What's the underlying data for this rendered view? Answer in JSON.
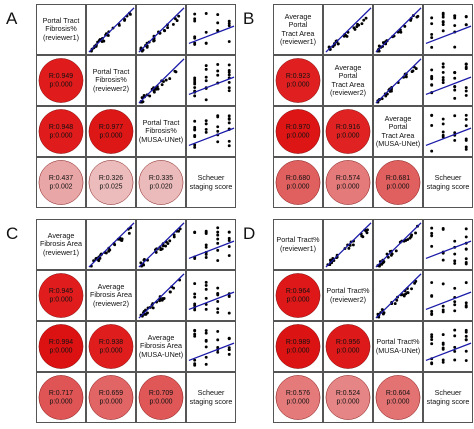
{
  "panels": [
    {
      "letter": "A",
      "labels": [
        "Portal Tract\nFibrosis%\n(reviewer1)",
        "Portal Tract\nFibrosis%\n(reviewer2)",
        "Portal Tract\nFibrosis%\n(MUSA-UNet)",
        "Scheuer\nstaging score"
      ],
      "correlations": [
        {
          "row": 2,
          "col": 1,
          "r": "R:0.949",
          "p": "p:0.000",
          "color": "#e01b1b"
        },
        {
          "row": 3,
          "col": 1,
          "r": "R:0.948",
          "p": "p:0.000",
          "color": "#e01b1b"
        },
        {
          "row": 3,
          "col": 2,
          "r": "R:0.977",
          "p": "p:0.000",
          "color": "#dd1616"
        },
        {
          "row": 4,
          "col": 1,
          "r": "R:0.437",
          "p": "p:0.002",
          "color": "#e8a6a6"
        },
        {
          "row": 4,
          "col": 2,
          "r": "R:0.326",
          "p": "p:0.025",
          "color": "#ecbcbc"
        },
        {
          "row": 4,
          "col": 3,
          "r": "R:0.335",
          "p": "p:0.020",
          "color": "#ebbaba"
        }
      ]
    },
    {
      "letter": "B",
      "labels": [
        "Average Portal\nTract Area\n(reviewer1)",
        "Average Portal\nTract Area\n(reviewer2)",
        "Average Portal\nTract Area\n(MUSA-UNet)",
        "Scheuer\nstaging score"
      ],
      "correlations": [
        {
          "row": 2,
          "col": 1,
          "r": "R:0.923",
          "p": "p:0.000",
          "color": "#e02020"
        },
        {
          "row": 3,
          "col": 1,
          "r": "R:0.970",
          "p": "p:0.000",
          "color": "#dd1515"
        },
        {
          "row": 3,
          "col": 2,
          "r": "R:0.916",
          "p": "p:0.000",
          "color": "#e02222"
        },
        {
          "row": 4,
          "col": 1,
          "r": "R:0.680",
          "p": "p:0.000",
          "color": "#e06060"
        },
        {
          "row": 4,
          "col": 2,
          "r": "R:0.574",
          "p": "p:0.000",
          "color": "#e47a7a"
        },
        {
          "row": 4,
          "col": 3,
          "r": "R:0.681",
          "p": "p:0.000",
          "color": "#e05f5f"
        }
      ]
    },
    {
      "letter": "C",
      "labels": [
        "Average\nFibrosis Area\n(reviewer1)",
        "Average\nFibrosis Area\n(reviewer2)",
        "Average\nFibrosis Area\n(MUSA-UNet)",
        "Scheuer\nstaging score"
      ],
      "correlations": [
        {
          "row": 2,
          "col": 1,
          "r": "R:0.945",
          "p": "p:0.000",
          "color": "#e01c1c"
        },
        {
          "row": 3,
          "col": 1,
          "r": "R:0.994",
          "p": "p:0.000",
          "color": "#dc1212"
        },
        {
          "row": 3,
          "col": 2,
          "r": "R:0.938",
          "p": "p:0.000",
          "color": "#e01d1d"
        },
        {
          "row": 4,
          "col": 1,
          "r": "R:0.717",
          "p": "p:0.000",
          "color": "#df5555"
        },
        {
          "row": 4,
          "col": 2,
          "r": "R:0.659",
          "p": "p:0.000",
          "color": "#e16565"
        },
        {
          "row": 4,
          "col": 3,
          "r": "R:0.709",
          "p": "p:0.000",
          "color": "#df5757"
        }
      ]
    },
    {
      "letter": "D",
      "labels": [
        "Portal Tract%\n(reviewer1)",
        "Portal Tract%\n(reviewer2)",
        "Portal Tract%\n(MUSA-UNet)",
        "Scheuer\nstaging score"
      ],
      "correlations": [
        {
          "row": 2,
          "col": 1,
          "r": "R:0.964",
          "p": "p:0.000",
          "color": "#de1818"
        },
        {
          "row": 3,
          "col": 1,
          "r": "R:0.989",
          "p": "p:0.000",
          "color": "#dc1313"
        },
        {
          "row": 3,
          "col": 2,
          "r": "R:0.956",
          "p": "p:0.000",
          "color": "#de1919"
        },
        {
          "row": 4,
          "col": 1,
          "r": "R:0.576",
          "p": "p:0.000",
          "color": "#e47a7a"
        },
        {
          "row": 4,
          "col": 2,
          "r": "R:0.524",
          "p": "p:0.000",
          "color": "#e68585"
        },
        {
          "row": 4,
          "col": 3,
          "r": "R:0.604",
          "p": "p:0.000",
          "color": "#e37272"
        }
      ]
    }
  ],
  "chart_data": [
    {
      "type": "scatter",
      "panel": "A",
      "variables": [
        "Portal Tract Fibrosis% (reviewer1)",
        "Portal Tract Fibrosis% (reviewer2)",
        "Portal Tract Fibrosis% (MUSA-UNet)",
        "Scheuer staging score"
      ],
      "correlation_matrix": {
        "R": [
          [
            1,
            0.949,
            0.948,
            0.437
          ],
          [
            0.949,
            1,
            0.977,
            0.326
          ],
          [
            0.948,
            0.977,
            1,
            0.335
          ],
          [
            0.437,
            0.326,
            0.335,
            1
          ]
        ],
        "p": [
          [
            0,
            0.0,
            0.0,
            0.002
          ],
          [
            0.0,
            0,
            0.0,
            0.025
          ],
          [
            0.0,
            0.0,
            0,
            0.02
          ],
          [
            0.002,
            0.025,
            0.02,
            0
          ]
        ]
      },
      "fit_line_color": "#1a1aa8",
      "point_color": "#000000",
      "circle_color_scale": "red intensity proportional to R"
    },
    {
      "type": "scatter",
      "panel": "B",
      "variables": [
        "Average Portal Tract Area (reviewer1)",
        "Average Portal Tract Area (reviewer2)",
        "Average Portal Tract Area (MUSA-UNet)",
        "Scheuer staging score"
      ],
      "correlation_matrix": {
        "R": [
          [
            1,
            0.923,
            0.97,
            0.68
          ],
          [
            0.923,
            1,
            0.916,
            0.574
          ],
          [
            0.97,
            0.916,
            1,
            0.681
          ],
          [
            0.68,
            0.574,
            0.681,
            1
          ]
        ],
        "p": [
          [
            0,
            0.0,
            0.0,
            0.0
          ],
          [
            0.0,
            0,
            0.0,
            0.0
          ],
          [
            0.0,
            0.0,
            0,
            0.0
          ],
          [
            0.0,
            0.0,
            0.0,
            0
          ]
        ]
      },
      "fit_line_color": "#1a1aa8",
      "point_color": "#000000"
    },
    {
      "type": "scatter",
      "panel": "C",
      "variables": [
        "Average Fibrosis Area (reviewer1)",
        "Average Fibrosis Area (reviewer2)",
        "Average Fibrosis Area (MUSA-UNet)",
        "Scheuer staging score"
      ],
      "correlation_matrix": {
        "R": [
          [
            1,
            0.945,
            0.994,
            0.717
          ],
          [
            0.945,
            1,
            0.938,
            0.659
          ],
          [
            0.994,
            0.938,
            1,
            0.709
          ],
          [
            0.717,
            0.659,
            0.709,
            1
          ]
        ],
        "p": [
          [
            0,
            0.0,
            0.0,
            0.0
          ],
          [
            0.0,
            0,
            0.0,
            0.0
          ],
          [
            0.0,
            0.0,
            0,
            0.0
          ],
          [
            0.0,
            0.0,
            0.0,
            0
          ]
        ]
      },
      "fit_line_color": "#1a1aa8",
      "point_color": "#000000"
    },
    {
      "type": "scatter",
      "panel": "D",
      "variables": [
        "Portal Tract% (reviewer1)",
        "Portal Tract% (reviewer2)",
        "Portal Tract% (MUSA-UNet)",
        "Scheuer staging score"
      ],
      "correlation_matrix": {
        "R": [
          [
            1,
            0.964,
            0.989,
            0.576
          ],
          [
            0.964,
            1,
            0.956,
            0.524
          ],
          [
            0.989,
            0.956,
            1,
            0.604
          ],
          [
            0.576,
            0.524,
            0.604,
            1
          ]
        ],
        "p": [
          [
            0,
            0.0,
            0.0,
            0.0
          ],
          [
            0.0,
            0,
            0.0,
            0.0
          ],
          [
            0.0,
            0.0,
            0,
            0.0
          ],
          [
            0.0,
            0.0,
            0.0,
            0
          ]
        ]
      },
      "fit_line_color": "#1a1aa8",
      "point_color": "#000000"
    }
  ]
}
